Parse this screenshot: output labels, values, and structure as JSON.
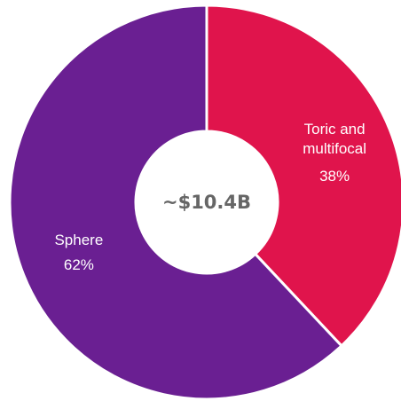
{
  "chart_data": {
    "type": "donut",
    "center_label": "~$10.4B",
    "categories": [
      "Toric and multifocal",
      "Sphere"
    ],
    "values": [
      38,
      62
    ],
    "value_labels": [
      "38%",
      "62%"
    ],
    "colors": [
      "#e0144c",
      "#6a1f92"
    ]
  }
}
